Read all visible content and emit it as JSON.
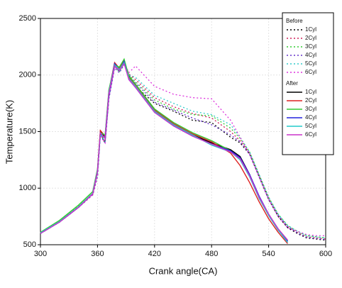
{
  "chart_data": {
    "type": "line",
    "x_label": "Crank angle(CA)",
    "y_label": "Temperature(K)",
    "x": [
      300,
      320,
      340,
      355,
      360,
      363,
      368,
      372,
      378,
      383,
      388,
      393,
      400,
      420,
      440,
      460,
      480,
      500,
      510,
      520,
      530,
      540,
      550,
      560,
      570,
      580,
      590,
      600
    ],
    "xlim": [
      300,
      600
    ],
    "xticks": [
      300,
      360,
      420,
      480,
      540,
      600
    ],
    "ylim": [
      500,
      2500
    ],
    "yticks": [
      500,
      1000,
      1500,
      2000,
      2500
    ],
    "grid": true,
    "legend": "upper-right",
    "legend_titles": [
      "Before",
      "After"
    ],
    "series": [
      {
        "name": "1Cyl",
        "color": "#000000",
        "dashed": true,
        "values": [
          600,
          700,
          830,
          940,
          1100,
          1480,
          1400,
          1800,
          2080,
          2030,
          2100,
          2000,
          1900,
          1750,
          1680,
          1600,
          1580,
          1450,
          1400,
          1300,
          1100,
          900,
          750,
          650,
          600,
          560,
          550,
          540
        ]
      },
      {
        "name": "2Cyl",
        "color": "#d0205a",
        "dashed": true,
        "values": [
          605,
          705,
          835,
          945,
          1110,
          1490,
          1410,
          1810,
          2090,
          2040,
          2110,
          2010,
          1960,
          1800,
          1720,
          1660,
          1620,
          1500,
          1420,
          1310,
          1110,
          910,
          760,
          660,
          610,
          570,
          560,
          550
        ]
      },
      {
        "name": "3Cyl",
        "color": "#33cc33",
        "dashed": true,
        "values": [
          610,
          710,
          840,
          950,
          1120,
          1470,
          1420,
          1820,
          2070,
          2030,
          2100,
          2000,
          1940,
          1780,
          1700,
          1650,
          1640,
          1530,
          1440,
          1320,
          1120,
          920,
          770,
          670,
          620,
          580,
          570,
          560
        ]
      },
      {
        "name": "4Cyl",
        "color": "#6633cc",
        "dashed": true,
        "values": [
          600,
          700,
          830,
          945,
          1100,
          1460,
          1400,
          1790,
          2060,
          2020,
          2090,
          1990,
          1930,
          1760,
          1690,
          1620,
          1560,
          1470,
          1410,
          1300,
          1100,
          900,
          760,
          660,
          605,
          565,
          555,
          545
        ]
      },
      {
        "name": "5Cyl",
        "color": "#33cccc",
        "dashed": true,
        "values": [
          605,
          705,
          835,
          950,
          1110,
          1480,
          1410,
          1800,
          2080,
          2030,
          2100,
          2000,
          1980,
          1820,
          1750,
          1680,
          1650,
          1560,
          1450,
          1320,
          1120,
          920,
          770,
          670,
          620,
          580,
          570,
          560
        ]
      },
      {
        "name": "6Cyl",
        "color": "#dd33dd",
        "dashed": true,
        "values": [
          600,
          700,
          830,
          940,
          1100,
          1470,
          1400,
          1800,
          2070,
          2040,
          2110,
          2020,
          2080,
          1900,
          1830,
          1800,
          1790,
          1600,
          1450,
          1300,
          1100,
          900,
          750,
          650,
          620,
          590,
          580,
          580
        ]
      },
      {
        "name": "1Cyl",
        "color": "#000000",
        "dashed": false,
        "values": [
          600,
          700,
          830,
          950,
          1150,
          1500,
          1450,
          1850,
          2100,
          2050,
          2120,
          1970,
          1900,
          1680,
          1560,
          1470,
          1400,
          1340,
          1280,
          1120,
          920,
          760,
          630,
          530,
          null,
          null,
          null,
          null
        ]
      },
      {
        "name": "2Cyl",
        "color": "#dd2222",
        "dashed": false,
        "values": [
          605,
          705,
          835,
          955,
          1160,
          1510,
          1460,
          1860,
          2110,
          2060,
          2130,
          1980,
          1910,
          1690,
          1570,
          1480,
          1410,
          1310,
          1200,
          1050,
          880,
          730,
          610,
          510,
          null,
          null,
          null,
          null
        ]
      },
      {
        "name": "3Cyl",
        "color": "#33cc33",
        "dashed": false,
        "values": [
          610,
          715,
          850,
          970,
          1170,
          1490,
          1470,
          1870,
          2090,
          2070,
          2140,
          1990,
          1920,
          1700,
          1580,
          1490,
          1420,
          1330,
          1260,
          1110,
          910,
          760,
          640,
          540,
          null,
          null,
          null,
          null
        ]
      },
      {
        "name": "4Cyl",
        "color": "#2222dd",
        "dashed": false,
        "values": [
          600,
          700,
          830,
          950,
          1150,
          1480,
          1440,
          1840,
          2100,
          2040,
          2120,
          1960,
          1890,
          1670,
          1550,
          1460,
          1390,
          1330,
          1270,
          1120,
          930,
          770,
          640,
          530,
          null,
          null,
          null,
          null
        ]
      },
      {
        "name": "5Cyl",
        "color": "#22cccc",
        "dashed": false,
        "values": [
          605,
          705,
          835,
          955,
          1155,
          1470,
          1450,
          1850,
          2090,
          2050,
          2110,
          1970,
          1900,
          1680,
          1560,
          1470,
          1380,
          1320,
          1250,
          1100,
          910,
          760,
          630,
          520,
          null,
          null,
          null,
          null
        ]
      },
      {
        "name": "6Cyl",
        "color": "#cc33cc",
        "dashed": false,
        "values": [
          600,
          700,
          830,
          950,
          1150,
          1490,
          1440,
          1840,
          2080,
          2040,
          2100,
          1960,
          1890,
          1670,
          1550,
          1460,
          1390,
          1320,
          1260,
          1110,
          920,
          770,
          640,
          540,
          null,
          null,
          null,
          null
        ]
      }
    ]
  }
}
